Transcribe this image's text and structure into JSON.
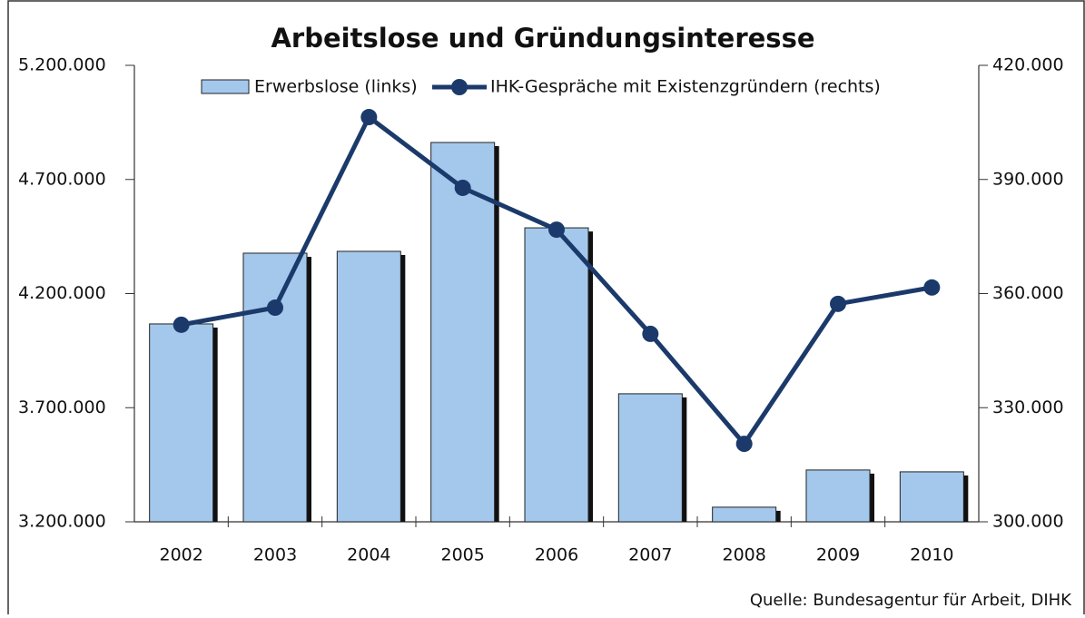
{
  "chart_data": {
    "type": "bar_line",
    "title": "Arbeitslose und Gründungsinteresse",
    "source": "Quelle: Bundesagentur für Arbeit, DIHK",
    "categories": [
      "2002",
      "2003",
      "2004",
      "2005",
      "2006",
      "2007",
      "2008",
      "2009",
      "2010"
    ],
    "series": [
      {
        "name": "Erwerbslose (links)",
        "color": "#a3c8ec",
        "type": "bar",
        "axis": "y",
        "values": [
          4067000,
          4377000,
          4385000,
          4862000,
          4488000,
          3761000,
          3264000,
          3427000,
          3419000
        ]
      },
      {
        "name": "IHK-Gespräche mit Existenzgründern (rechts)",
        "color": "#1b3a6b",
        "type": "line",
        "axis": "y2",
        "values": [
          351800,
          356300,
          406400,
          387800,
          376800,
          349400,
          320500,
          357300,
          361600
        ]
      }
    ],
    "ylim": [
      3200000,
      5200000
    ],
    "yticks": [
      {
        "value": 3200000,
        "label": "3.200.000"
      },
      {
        "value": 3700000,
        "label": "3.700.000"
      },
      {
        "value": 4200000,
        "label": "4.200.000"
      },
      {
        "value": 4700000,
        "label": "4.700.000"
      },
      {
        "value": 5200000,
        "label": "5.200.000"
      }
    ],
    "y2lim": [
      300000,
      420000
    ],
    "y2ticks": [
      {
        "value": 300000,
        "label": "300.000"
      },
      {
        "value": 330000,
        "label": "330.000"
      },
      {
        "value": 360000,
        "label": "360.000"
      },
      {
        "value": 390000,
        "label": "390.000"
      },
      {
        "value": 420000,
        "label": "420.000"
      }
    ],
    "grid": false
  }
}
